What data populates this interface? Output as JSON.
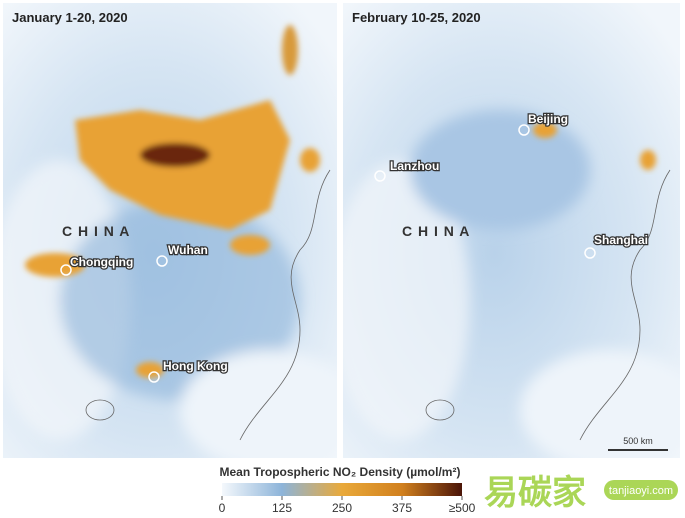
{
  "panels": [
    {
      "title": "January 1-20, 2020",
      "country": "C H I N A",
      "cities": [
        "Chongqing",
        "Wuhan",
        "Hong Kong"
      ]
    },
    {
      "title": "February 10-25, 2020",
      "country": "C H I N A",
      "cities": [
        "Beijing",
        "Lanzhou",
        "Shanghai"
      ],
      "scale_bar": "500 km"
    }
  ],
  "legend": {
    "title": "Mean Tropospheric NO₂ Density (µmol/m²)",
    "range": [
      0,
      500
    ],
    "ticks": [
      0,
      125,
      250,
      375,
      {
        "value": 500,
        "label": "≥500"
      }
    ]
  },
  "watermark": {
    "text": "易碳家",
    "url": "tanjiaoyi.com"
  }
}
